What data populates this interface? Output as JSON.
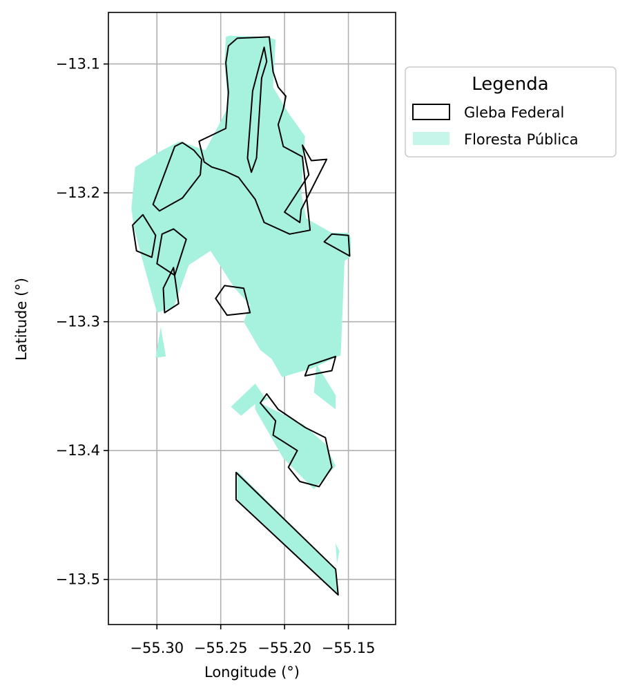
{
  "chart_data": {
    "type": "map",
    "title": "",
    "xlabel": "Longitude (°)",
    "ylabel": "Latitude (°)",
    "xlim": [
      -55.338,
      -55.113
    ],
    "ylim": [
      -13.535,
      -13.06
    ],
    "xticks": [
      {
        "value": -55.3,
        "label": "−55.30"
      },
      {
        "value": -55.25,
        "label": "−55.25"
      },
      {
        "value": -55.2,
        "label": "−55.20"
      },
      {
        "value": -55.15,
        "label": "−55.15"
      }
    ],
    "yticks": [
      {
        "value": -13.1,
        "label": "−13.1"
      },
      {
        "value": -13.2,
        "label": "−13.2"
      },
      {
        "value": -13.3,
        "label": "−13.3"
      },
      {
        "value": -13.4,
        "label": "−13.4"
      },
      {
        "value": -13.5,
        "label": "−13.5"
      }
    ],
    "grid": true,
    "legend": {
      "title": "Legenda",
      "placement": "outside-top-right",
      "entries": [
        {
          "label": "Gleba Federal",
          "style": "outline",
          "color": "#000000"
        },
        {
          "label": "Floresta Pública",
          "style": "fill",
          "color": "#a6f2df"
        }
      ]
    },
    "colors": {
      "forest": "#a6f2df",
      "gleba_edge": "#000000",
      "grid": "#b0b0b0"
    },
    "layers": [
      {
        "name": "Floresta Pública",
        "polygons": [
          [
            [
              -55.243,
              -13.078
            ],
            [
              -55.214,
              -13.079
            ],
            [
              -55.207,
              -13.081
            ],
            [
              -55.209,
              -13.118
            ],
            [
              -55.197,
              -13.138
            ],
            [
              -55.184,
              -13.156
            ],
            [
              -55.187,
              -13.2
            ],
            [
              -55.183,
              -13.22
            ],
            [
              -55.163,
              -13.231
            ],
            [
              -55.15,
              -13.231
            ],
            [
              -55.148,
              -13.235
            ],
            [
              -55.148,
              -13.249
            ],
            [
              -55.153,
              -13.253
            ],
            [
              -55.156,
              -13.326
            ],
            [
              -55.178,
              -13.336
            ],
            [
              -55.202,
              -13.343
            ],
            [
              -55.21,
              -13.329
            ],
            [
              -55.219,
              -13.322
            ],
            [
              -55.232,
              -13.3
            ],
            [
              -55.227,
              -13.287
            ],
            [
              -55.239,
              -13.274
            ],
            [
              -55.258,
              -13.245
            ],
            [
              -55.275,
              -13.256
            ],
            [
              -55.287,
              -13.289
            ],
            [
              -55.3,
              -13.293
            ],
            [
              -55.313,
              -13.246
            ],
            [
              -55.318,
              -13.227
            ],
            [
              -55.32,
              -13.212
            ],
            [
              -55.317,
              -13.18
            ],
            [
              -55.296,
              -13.167
            ],
            [
              -55.282,
              -13.16
            ],
            [
              -55.262,
              -13.167
            ],
            [
              -55.244,
              -13.133
            ],
            [
              -55.247,
              -13.1
            ],
            [
              -55.246,
              -13.079
            ]
          ]
        ]
      },
      {
        "name": "Floresta Pública",
        "polygons": [
          [
            [
              -55.16,
              -13.357
            ],
            [
              -55.175,
              -13.333
            ],
            [
              -55.177,
              -13.355
            ],
            [
              -55.16,
              -13.368
            ]
          ],
          [
            [
              -55.223,
              -13.348
            ],
            [
              -55.216,
              -13.358
            ],
            [
              -55.234,
              -13.373
            ],
            [
              -55.242,
              -13.366
            ]
          ],
          [
            [
              -55.223,
              -13.358
            ],
            [
              -55.212,
              -13.359
            ],
            [
              -55.219,
              -13.363
            ],
            [
              -55.185,
              -13.38
            ],
            [
              -55.168,
              -13.395
            ],
            [
              -55.16,
              -13.412
            ],
            [
              -55.177,
              -13.43
            ],
            [
              -55.201,
              -13.406
            ],
            [
              -55.223,
              -13.368
            ]
          ],
          [
            [
              -55.237,
              -13.416
            ],
            [
              -55.237,
              -13.438
            ],
            [
              -55.158,
              -13.512
            ],
            [
              -55.16,
              -13.492
            ]
          ],
          [
            [
              -55.157,
              -13.478
            ],
            [
              -55.159,
              -13.488
            ],
            [
              -55.16,
              -13.472
            ]
          ],
          [
            [
              -55.297,
              -13.304
            ],
            [
              -55.293,
              -13.327
            ],
            [
              -55.301,
              -13.328
            ]
          ]
        ]
      },
      {
        "name": "Gleba Federal",
        "polygons": [
          [
            [
              -55.237,
              -13.08
            ],
            [
              -55.212,
              -13.079
            ],
            [
              -55.209,
              -13.106
            ],
            [
              -55.205,
              -13.118
            ],
            [
              -55.199,
              -13.125
            ],
            [
              -55.201,
              -13.135
            ],
            [
              -55.205,
              -13.147
            ],
            [
              -55.201,
              -13.164
            ],
            [
              -55.186,
              -13.172
            ],
            [
              -55.184,
              -13.191
            ],
            [
              -55.18,
              -13.229
            ],
            [
              -55.196,
              -13.232
            ],
            [
              -55.216,
              -13.223
            ],
            [
              -55.223,
              -13.205
            ],
            [
              -55.236,
              -13.188
            ],
            [
              -55.247,
              -13.183
            ],
            [
              -55.257,
              -13.18
            ],
            [
              -55.263,
              -13.176
            ],
            [
              -55.267,
              -13.16
            ],
            [
              -55.246,
              -13.15
            ],
            [
              -55.244,
              -13.122
            ],
            [
              -55.246,
              -13.099
            ],
            [
              -55.244,
              -13.086
            ]
          ],
          [
            [
              -55.216,
              -13.087
            ],
            [
              -55.225,
              -13.121
            ],
            [
              -55.229,
              -13.173
            ],
            [
              -55.226,
              -13.184
            ],
            [
              -55.222,
              -13.173
            ],
            [
              -55.218,
              -13.111
            ],
            [
              -55.214,
              -13.098
            ]
          ],
          [
            [
              -55.163,
              -13.232
            ],
            [
              -55.15,
              -13.233
            ],
            [
              -55.149,
              -13.249
            ],
            [
              -55.169,
              -13.238
            ]
          ],
          [
            [
              -55.167,
              -13.174
            ],
            [
              -55.187,
              -13.213
            ],
            [
              -55.188,
              -13.223
            ],
            [
              -55.2,
              -13.215
            ],
            [
              -55.181,
              -13.186
            ],
            [
              -55.186,
              -13.163
            ],
            [
              -55.179,
              -13.175
            ]
          ],
          [
            [
              -55.286,
              -13.164
            ],
            [
              -55.303,
              -13.209
            ],
            [
              -55.298,
              -13.214
            ],
            [
              -55.28,
              -13.204
            ],
            [
              -55.266,
              -13.186
            ],
            [
              -55.265,
              -13.174
            ],
            [
              -55.271,
              -13.167
            ],
            [
              -55.28,
              -13.161
            ]
          ],
          [
            [
              -55.311,
              -13.217
            ],
            [
              -55.301,
              -13.233
            ],
            [
              -55.304,
              -13.25
            ],
            [
              -55.316,
              -13.245
            ],
            [
              -55.319,
              -13.225
            ]
          ],
          [
            [
              -55.277,
              -13.236
            ],
            [
              -55.286,
              -13.264
            ],
            [
              -55.3,
              -13.255
            ],
            [
              -55.296,
              -13.232
            ],
            [
              -55.287,
              -13.228
            ]
          ],
          [
            [
              -55.287,
              -13.258
            ],
            [
              -55.283,
              -13.286
            ],
            [
              -55.294,
              -13.293
            ],
            [
              -55.295,
              -13.274
            ]
          ],
          [
            [
              -55.254,
              -13.282
            ],
            [
              -55.245,
              -13.295
            ],
            [
              -55.227,
              -13.293
            ],
            [
              -55.232,
              -13.274
            ],
            [
              -55.247,
              -13.272
            ]
          ],
          [
            [
              -55.163,
              -13.338
            ],
            [
              -55.16,
              -13.327
            ],
            [
              -55.181,
              -13.334
            ],
            [
              -55.184,
              -13.342
            ]
          ],
          [
            [
              -55.214,
              -13.356
            ],
            [
              -55.219,
              -13.363
            ],
            [
              -55.207,
              -13.377
            ],
            [
              -55.209,
              -13.388
            ],
            [
              -55.19,
              -13.4
            ],
            [
              -55.197,
              -13.413
            ],
            [
              -55.188,
              -13.424
            ],
            [
              -55.173,
              -13.428
            ],
            [
              -55.163,
              -13.413
            ],
            [
              -55.168,
              -13.39
            ],
            [
              -55.184,
              -13.382
            ],
            [
              -55.205,
              -13.368
            ]
          ],
          [
            [
              -55.238,
              -13.417
            ],
            [
              -55.238,
              -13.438
            ],
            [
              -55.158,
              -13.512
            ],
            [
              -55.16,
              -13.492
            ]
          ]
        ]
      }
    ]
  }
}
